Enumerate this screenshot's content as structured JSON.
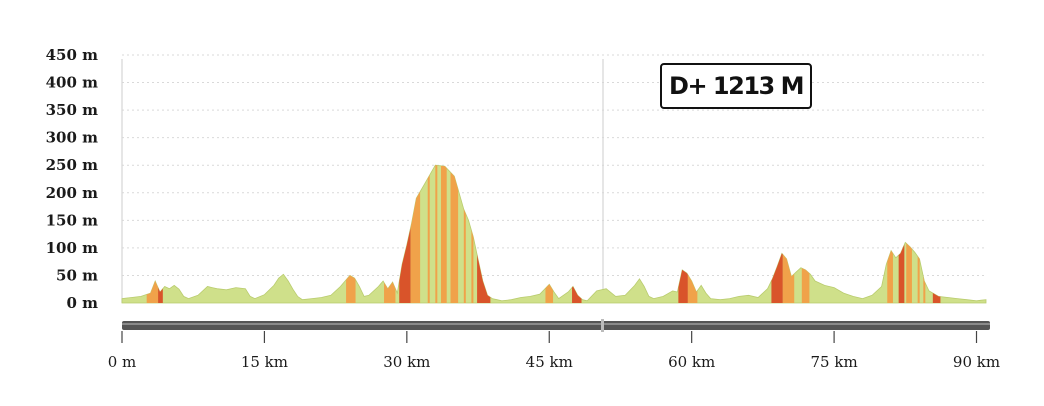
{
  "badge": {
    "gain_label": "D+ 1213 M"
  },
  "chart_data": {
    "type": "area",
    "title": "",
    "xlabel": "",
    "ylabel": "",
    "xlim": [
      0,
      91
    ],
    "ylim": [
      0,
      450
    ],
    "y_ticks": [
      "0 m",
      "50 m",
      "100 m",
      "150 m",
      "200 m",
      "250 m",
      "300 m",
      "350 m",
      "400 m",
      "450 m"
    ],
    "x_ticks": [
      "0 m",
      "15 km",
      "30 km",
      "45 km",
      "60 km",
      "75 km",
      "90 km"
    ],
    "x_tick_values": [
      0,
      15,
      30,
      45,
      60,
      75,
      90
    ],
    "grid": true,
    "colors": {
      "flat": "#cfe08a",
      "moderate": "#f0a24a",
      "steep": "#d9542a",
      "bar": "#555555"
    },
    "series": [
      {
        "distance_km": [
          0,
          1,
          2,
          3,
          3.5,
          4,
          4.5,
          5,
          5.5,
          6,
          6.5,
          7,
          8,
          9,
          9.5,
          10,
          11,
          12,
          13,
          13.5,
          14,
          15,
          16,
          16.5,
          17,
          17.5,
          18,
          18.5,
          19,
          20,
          21,
          22,
          23,
          24,
          24.5,
          25,
          25.5,
          26,
          27,
          27.5,
          28,
          28.5,
          29,
          29.5,
          30,
          30.5,
          31,
          32,
          33,
          34,
          35,
          35.5,
          36,
          36.5,
          37,
          37.5,
          38,
          38.5,
          39,
          39.5,
          40,
          41,
          42,
          43,
          44,
          45,
          45.5,
          46,
          47,
          47.5,
          48,
          48.5,
          49,
          50,
          51,
          52,
          53,
          54,
          54.5,
          55,
          55.5,
          56,
          57,
          58,
          58.5,
          59,
          59.5,
          60,
          60.5,
          61,
          61.5,
          62,
          63,
          64,
          65,
          66,
          67,
          68,
          68.5,
          69,
          69.5,
          70,
          70.5,
          71,
          71.5,
          72,
          72.5,
          73,
          74,
          75,
          76,
          77,
          78,
          79,
          80,
          80.5,
          81,
          81.5,
          82,
          82.5,
          83,
          83.5,
          84,
          84.5,
          85,
          86,
          87,
          88,
          89,
          90,
          90.5,
          91
        ],
        "elevation_m": [
          8,
          10,
          12,
          18,
          40,
          20,
          30,
          26,
          32,
          25,
          12,
          8,
          14,
          30,
          28,
          26,
          24,
          28,
          26,
          12,
          8,
          15,
          32,
          45,
          52,
          40,
          25,
          12,
          6,
          8,
          10,
          14,
          30,
          50,
          45,
          30,
          12,
          14,
          30,
          40,
          26,
          38,
          18,
          70,
          105,
          145,
          190,
          220,
          250,
          248,
          230,
          200,
          170,
          150,
          120,
          80,
          40,
          14,
          8,
          6,
          4,
          6,
          10,
          12,
          16,
          34,
          20,
          8,
          20,
          30,
          14,
          6,
          4,
          22,
          26,
          12,
          14,
          32,
          44,
          30,
          12,
          8,
          12,
          22,
          20,
          60,
          54,
          40,
          20,
          32,
          18,
          8,
          6,
          8,
          12,
          14,
          10,
          26,
          44,
          66,
          90,
          80,
          48,
          56,
          64,
          60,
          52,
          40,
          32,
          28,
          18,
          12,
          8,
          14,
          30,
          70,
          95,
          82,
          90,
          110,
          102,
          92,
          80,
          40,
          22,
          12,
          10,
          8,
          6,
          4,
          5,
          6
        ]
      }
    ],
    "climb_segments": [
      {
        "from_km": 2.6,
        "to_km": 3.8,
        "grade": "moderate"
      },
      {
        "from_km": 3.8,
        "to_km": 4.3,
        "grade": "steep"
      },
      {
        "from_km": 23.6,
        "to_km": 24.6,
        "grade": "moderate"
      },
      {
        "from_km": 27.6,
        "to_km": 28.8,
        "grade": "moderate"
      },
      {
        "from_km": 29.2,
        "to_km": 30.4,
        "grade": "steep"
      },
      {
        "from_km": 30.4,
        "to_km": 31.4,
        "grade": "moderate"
      },
      {
        "from_km": 33.6,
        "to_km": 34.2,
        "grade": "moderate"
      },
      {
        "from_km": 34.6,
        "to_km": 35.4,
        "grade": "moderate"
      },
      {
        "from_km": 37.4,
        "to_km": 38.8,
        "grade": "steep"
      },
      {
        "from_km": 44.6,
        "to_km": 45.4,
        "grade": "moderate"
      },
      {
        "from_km": 47.4,
        "to_km": 48.4,
        "grade": "steep"
      },
      {
        "from_km": 58.6,
        "to_km": 59.6,
        "grade": "steep"
      },
      {
        "from_km": 59.6,
        "to_km": 60.6,
        "grade": "moderate"
      },
      {
        "from_km": 68.4,
        "to_km": 69.6,
        "grade": "steep"
      },
      {
        "from_km": 69.6,
        "to_km": 70.8,
        "grade": "moderate"
      },
      {
        "from_km": 71.6,
        "to_km": 72.4,
        "grade": "moderate"
      },
      {
        "from_km": 80.6,
        "to_km": 81.2,
        "grade": "moderate"
      },
      {
        "from_km": 81.8,
        "to_km": 82.4,
        "grade": "steep"
      },
      {
        "from_km": 82.6,
        "to_km": 83.2,
        "grade": "moderate"
      },
      {
        "from_km": 85.4,
        "to_km": 86.2,
        "grade": "steep"
      }
    ]
  }
}
